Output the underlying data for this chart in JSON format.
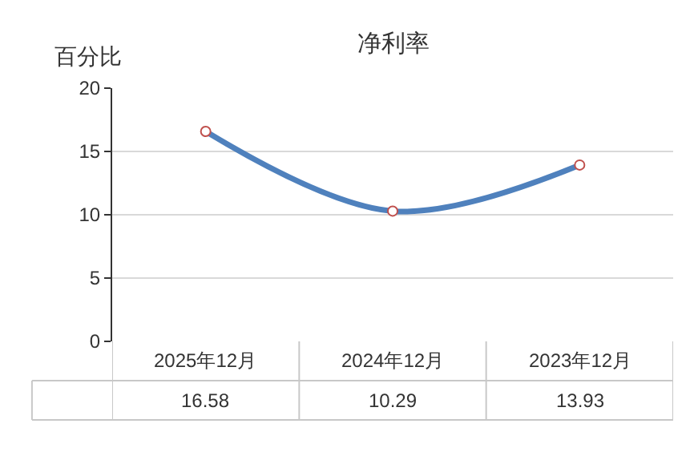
{
  "chart_data": {
    "type": "line",
    "title": "净利率",
    "ylabel": "百分比",
    "categories": [
      "2025年12月",
      "2024年12月",
      "2023年12月"
    ],
    "series": [
      {
        "color": "#4f81bd",
        "values": [
          16.58,
          10.29,
          13.93
        ]
      }
    ],
    "ylim": [
      0,
      20
    ],
    "yticks": [
      0,
      5,
      10,
      15,
      20
    ],
    "grid": "y",
    "marker": "circle",
    "line_style": "solid",
    "data_labels": true
  }
}
